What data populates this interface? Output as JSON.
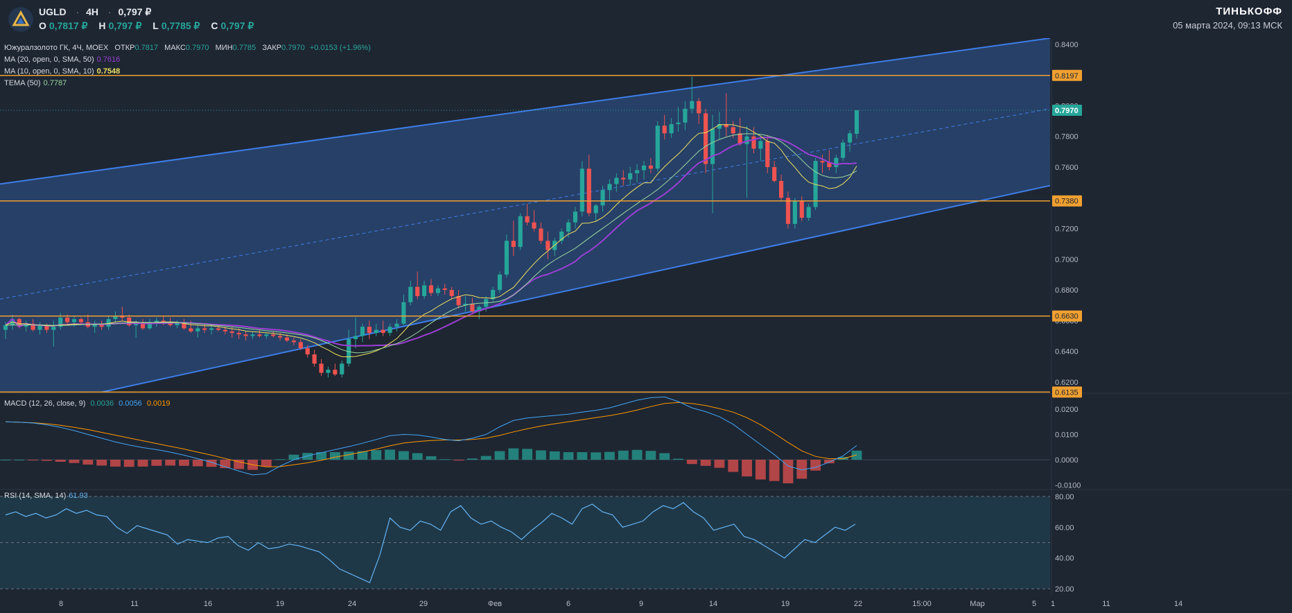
{
  "header": {
    "ticker": "UGLD",
    "timeframe": "4H",
    "price": "0,797 ₽",
    "open_label": "O",
    "open": "0,7817 ₽",
    "high_label": "H",
    "high": "0,797 ₽",
    "low_label": "L",
    "low": "0,7785 ₽",
    "close_label": "C",
    "close": "0,797 ₽",
    "brand": "ТИНЬКОФФ",
    "datetime": "05 марта 2024, 09:13 МСК"
  },
  "legend": {
    "instrument": "Южуралзолото ГК, 4Ч, MOEX",
    "open_label": "ОТКР",
    "open": "0.7817",
    "high_label": "МАКС",
    "high": "0.7970",
    "low_label": "МИН",
    "low": "0.7785",
    "close_label": "ЗАКР",
    "close": "0.7970",
    "change": "+0.0153 (+1.96%)",
    "ma20_label": "MA (20, open, 0, SMA, 50)",
    "ma20_value": "0.7616",
    "ma10_label": "MA (10, open, 0, SMA, 10)",
    "ma10_value": "0.7548",
    "tema_label": "TEMA (50)",
    "tema_value": "0.7787",
    "macd_label": "MACD (12, 26, close, 9)",
    "macd_hist": "0.0036",
    "macd_line": "0.0056",
    "macd_signal": "0.0019",
    "rsi_label": "RSI (14, SMA, 14)",
    "rsi_value": "61.93"
  },
  "colors": {
    "background": "#1e2632",
    "up": "#26a69a",
    "down": "#ef5350",
    "channel_line": "#3d7ee8",
    "channel_fill": "#2b4a7a",
    "level_line": "#f0a030",
    "ma20": "#9c3fd4",
    "ma10": "#f0e060",
    "tema": "#9bd8a0",
    "macd_line": "#42a5f5",
    "macd_signal": "#ff9800",
    "rsi_line": "#64b5f6",
    "rsi_fill": "#1f3d4c"
  },
  "chart_data": [
    {
      "type": "candlestick",
      "title": "Южуралзолото ГК, 4Ч, MOEX",
      "x_ticks": [
        "8",
        "11",
        "16",
        "19",
        "24",
        "29",
        "Фев",
        "6",
        "9",
        "14",
        "19",
        "22",
        "15:00",
        "Мар",
        "5",
        "11",
        "14",
        "1"
      ],
      "y_ticks": [
        "0.6200",
        "0.6400",
        "0.6600",
        "0.6800",
        "0.7000",
        "0.7200",
        "0.7600",
        "0.7800",
        "0.8000",
        "0.8400"
      ],
      "ylim": [
        0.6132,
        0.844
      ],
      "levels": [
        "0.8197",
        "0.7380",
        "0.6630",
        "0.6135"
      ],
      "last_price": "0.7970",
      "channel": {
        "upper": [
          [
            0,
            0.749
          ],
          [
            100,
            0.844
          ]
        ],
        "lower": [
          [
            0,
            0.599
          ],
          [
            100,
            0.748
          ]
        ],
        "mid": [
          [
            0,
            0.674
          ],
          [
            100,
            0.798
          ]
        ]
      },
      "candles": [
        [
          0.654,
          0.659,
          0.648,
          0.657
        ],
        [
          0.657,
          0.664,
          0.654,
          0.661
        ],
        [
          0.661,
          0.662,
          0.655,
          0.656
        ],
        [
          0.656,
          0.66,
          0.653,
          0.658
        ],
        [
          0.658,
          0.661,
          0.653,
          0.654
        ],
        [
          0.654,
          0.659,
          0.651,
          0.657
        ],
        [
          0.657,
          0.658,
          0.652,
          0.654
        ],
        [
          0.654,
          0.66,
          0.643,
          0.656
        ],
        [
          0.656,
          0.665,
          0.654,
          0.662
        ],
        [
          0.662,
          0.664,
          0.657,
          0.659
        ],
        [
          0.659,
          0.663,
          0.656,
          0.661
        ],
        [
          0.661,
          0.662,
          0.657,
          0.659
        ],
        [
          0.659,
          0.664,
          0.655,
          0.656
        ],
        [
          0.656,
          0.66,
          0.652,
          0.658
        ],
        [
          0.658,
          0.66,
          0.654,
          0.656
        ],
        [
          0.656,
          0.663,
          0.654,
          0.661
        ],
        [
          0.661,
          0.666,
          0.659,
          0.663
        ],
        [
          0.663,
          0.669,
          0.66,
          0.662
        ],
        [
          0.662,
          0.664,
          0.656,
          0.657
        ],
        [
          0.657,
          0.66,
          0.649,
          0.659
        ],
        [
          0.659,
          0.661,
          0.654,
          0.655
        ],
        [
          0.655,
          0.661,
          0.654,
          0.659
        ],
        [
          0.659,
          0.662,
          0.656,
          0.66
        ],
        [
          0.66,
          0.663,
          0.657,
          0.659
        ],
        [
          0.659,
          0.662,
          0.656,
          0.657
        ],
        [
          0.657,
          0.66,
          0.655,
          0.659
        ],
        [
          0.659,
          0.661,
          0.654,
          0.655
        ],
        [
          0.655,
          0.66,
          0.652,
          0.653
        ],
        [
          0.653,
          0.657,
          0.649,
          0.655
        ],
        [
          0.655,
          0.658,
          0.652,
          0.654
        ],
        [
          0.654,
          0.657,
          0.651,
          0.655
        ],
        [
          0.655,
          0.657,
          0.653,
          0.654
        ],
        [
          0.654,
          0.656,
          0.651,
          0.653
        ],
        [
          0.653,
          0.656,
          0.649,
          0.652
        ],
        [
          0.652,
          0.655,
          0.648,
          0.651
        ],
        [
          0.651,
          0.653,
          0.647,
          0.65
        ],
        [
          0.65,
          0.653,
          0.648,
          0.651
        ],
        [
          0.651,
          0.654,
          0.649,
          0.65
        ],
        [
          0.65,
          0.652,
          0.648,
          0.651
        ],
        [
          0.651,
          0.653,
          0.649,
          0.65
        ],
        [
          0.65,
          0.652,
          0.647,
          0.649
        ],
        [
          0.649,
          0.651,
          0.646,
          0.647
        ],
        [
          0.647,
          0.649,
          0.644,
          0.646
        ],
        [
          0.646,
          0.648,
          0.641,
          0.642
        ],
        [
          0.642,
          0.644,
          0.636,
          0.638
        ],
        [
          0.638,
          0.641,
          0.63,
          0.632
        ],
        [
          0.632,
          0.635,
          0.624,
          0.626
        ],
        [
          0.626,
          0.63,
          0.623,
          0.628
        ],
        [
          0.628,
          0.632,
          0.624,
          0.625
        ],
        [
          0.625,
          0.634,
          0.623,
          0.632
        ],
        [
          0.632,
          0.654,
          0.63,
          0.648
        ],
        [
          0.648,
          0.662,
          0.642,
          0.65
        ],
        [
          0.65,
          0.658,
          0.646,
          0.656
        ],
        [
          0.656,
          0.66,
          0.648,
          0.652
        ],
        [
          0.652,
          0.658,
          0.65,
          0.654
        ],
        [
          0.654,
          0.66,
          0.65,
          0.652
        ],
        [
          0.652,
          0.658,
          0.65,
          0.656
        ],
        [
          0.656,
          0.661,
          0.653,
          0.658
        ],
        [
          0.658,
          0.677,
          0.657,
          0.672
        ],
        [
          0.672,
          0.686,
          0.67,
          0.682
        ],
        [
          0.682,
          0.692,
          0.674,
          0.676
        ],
        [
          0.676,
          0.686,
          0.674,
          0.683
        ],
        [
          0.683,
          0.687,
          0.676,
          0.678
        ],
        [
          0.678,
          0.683,
          0.676,
          0.681
        ],
        [
          0.681,
          0.684,
          0.677,
          0.68
        ],
        [
          0.68,
          0.682,
          0.674,
          0.676
        ],
        [
          0.676,
          0.68,
          0.668,
          0.67
        ],
        [
          0.67,
          0.676,
          0.666,
          0.671
        ],
        [
          0.671,
          0.675,
          0.664,
          0.666
        ],
        [
          0.666,
          0.67,
          0.661,
          0.669
        ],
        [
          0.669,
          0.676,
          0.666,
          0.674
        ],
        [
          0.674,
          0.682,
          0.672,
          0.68
        ],
        [
          0.68,
          0.692,
          0.678,
          0.69
        ],
        [
          0.69,
          0.716,
          0.688,
          0.712
        ],
        [
          0.712,
          0.725,
          0.702,
          0.708
        ],
        [
          0.708,
          0.73,
          0.706,
          0.728
        ],
        [
          0.728,
          0.736,
          0.722,
          0.724
        ],
        [
          0.724,
          0.732,
          0.718,
          0.72
        ],
        [
          0.72,
          0.724,
          0.71,
          0.712
        ],
        [
          0.712,
          0.718,
          0.7,
          0.706
        ],
        [
          0.706,
          0.714,
          0.702,
          0.712
        ],
        [
          0.712,
          0.72,
          0.71,
          0.718
        ],
        [
          0.718,
          0.726,
          0.714,
          0.724
        ],
        [
          0.724,
          0.734,
          0.72,
          0.731
        ],
        [
          0.731,
          0.764,
          0.728,
          0.759
        ],
        [
          0.759,
          0.768,
          0.728,
          0.73
        ],
        [
          0.73,
          0.736,
          0.725,
          0.735
        ],
        [
          0.735,
          0.748,
          0.731,
          0.745
        ],
        [
          0.745,
          0.752,
          0.738,
          0.749
        ],
        [
          0.749,
          0.756,
          0.744,
          0.753
        ],
        [
          0.753,
          0.758,
          0.748,
          0.752
        ],
        [
          0.752,
          0.76,
          0.748,
          0.756
        ],
        [
          0.756,
          0.762,
          0.75,
          0.758
        ],
        [
          0.758,
          0.764,
          0.752,
          0.761
        ],
        [
          0.761,
          0.766,
          0.756,
          0.759
        ],
        [
          0.759,
          0.79,
          0.757,
          0.787
        ],
        [
          0.787,
          0.794,
          0.778,
          0.782
        ],
        [
          0.782,
          0.792,
          0.779,
          0.788
        ],
        [
          0.788,
          0.799,
          0.783,
          0.789
        ],
        [
          0.789,
          0.803,
          0.784,
          0.798
        ],
        [
          0.798,
          0.819,
          0.795,
          0.803
        ],
        [
          0.803,
          0.805,
          0.788,
          0.795
        ],
        [
          0.795,
          0.798,
          0.756,
          0.762
        ],
        [
          0.762,
          0.794,
          0.73,
          0.785
        ],
        [
          0.785,
          0.796,
          0.778,
          0.788
        ],
        [
          0.788,
          0.808,
          0.78,
          0.786
        ],
        [
          0.786,
          0.79,
          0.779,
          0.782
        ],
        [
          0.782,
          0.792,
          0.774,
          0.775
        ],
        [
          0.775,
          0.787,
          0.74,
          0.78
        ],
        [
          0.78,
          0.786,
          0.769,
          0.772
        ],
        [
          0.772,
          0.779,
          0.764,
          0.777
        ],
        [
          0.777,
          0.781,
          0.756,
          0.76
        ],
        [
          0.76,
          0.764,
          0.75,
          0.751
        ],
        [
          0.751,
          0.755,
          0.738,
          0.74
        ],
        [
          0.74,
          0.744,
          0.72,
          0.723
        ],
        [
          0.723,
          0.74,
          0.72,
          0.738
        ],
        [
          0.738,
          0.741,
          0.725,
          0.727
        ],
        [
          0.727,
          0.736,
          0.725,
          0.734
        ],
        [
          0.734,
          0.766,
          0.732,
          0.764
        ],
        [
          0.764,
          0.768,
          0.756,
          0.763
        ],
        [
          0.763,
          0.771,
          0.758,
          0.76
        ],
        [
          0.76,
          0.768,
          0.756,
          0.766
        ],
        [
          0.766,
          0.778,
          0.764,
          0.776
        ],
        [
          0.776,
          0.784,
          0.77,
          0.782
        ],
        [
          0.7817,
          0.797,
          0.7785,
          0.797
        ]
      ]
    },
    {
      "type": "line",
      "title": "MACD (12, 26, close, 9)",
      "y_ticks": [
        "0.0200",
        "0.0100",
        "0.0000",
        "-0.0100"
      ],
      "ylim": [
        -0.0115,
        0.026
      ],
      "macd": [
        0.015,
        0.0148,
        0.0145,
        0.0138,
        0.0128,
        0.0115,
        0.01,
        0.0085,
        0.007,
        0.0058,
        0.0048,
        0.004,
        0.003,
        0.0018,
        0.0004,
        -0.001,
        -0.0028,
        -0.0045,
        -0.006,
        -0.0055,
        -0.0025,
        0.0,
        0.0015,
        0.0028,
        0.004,
        0.0052,
        0.0065,
        0.008,
        0.0095,
        0.01,
        0.0098,
        0.009,
        0.008,
        0.0075,
        0.0085,
        0.01,
        0.013,
        0.0155,
        0.0165,
        0.017,
        0.0175,
        0.018,
        0.0188,
        0.0195,
        0.0205,
        0.022,
        0.0235,
        0.0245,
        0.0248,
        0.023,
        0.0205,
        0.019,
        0.017,
        0.014,
        0.01,
        0.006,
        0.002,
        -0.0025,
        -0.004,
        -0.003,
        -0.001,
        0.0015,
        0.0056
      ],
      "signal": [
        0.015,
        0.0148,
        0.0146,
        0.0142,
        0.0136,
        0.0128,
        0.0119,
        0.0108,
        0.0097,
        0.0086,
        0.0075,
        0.0064,
        0.0053,
        0.0042,
        0.003,
        0.0018,
        0.0005,
        -0.0008,
        -0.002,
        -0.0028,
        -0.0027,
        -0.002,
        -0.0012,
        -0.0002,
        0.001,
        0.002,
        0.0031,
        0.0042,
        0.0055,
        0.0066,
        0.0072,
        0.0076,
        0.0078,
        0.0078,
        0.008,
        0.0085,
        0.0096,
        0.011,
        0.0122,
        0.0133,
        0.0142,
        0.015,
        0.0158,
        0.0166,
        0.0174,
        0.0184,
        0.0196,
        0.021,
        0.0222,
        0.0226,
        0.0222,
        0.0214,
        0.0202,
        0.0188,
        0.0166,
        0.0138,
        0.0104,
        0.0068,
        0.0035,
        0.0013,
        0.0004,
        0.0004,
        0.0019
      ],
      "histogram": [
        0.0,
        0.0,
        -0.0001,
        -0.0004,
        -0.0008,
        -0.0013,
        -0.0019,
        -0.0023,
        -0.0027,
        -0.0028,
        -0.0027,
        -0.0024,
        -0.0023,
        -0.0024,
        -0.0026,
        -0.0028,
        -0.0033,
        -0.0037,
        -0.004,
        -0.0027,
        0.0002,
        0.002,
        0.0027,
        0.003,
        0.003,
        0.0032,
        0.0034,
        0.0038,
        0.004,
        0.0034,
        0.0026,
        0.0014,
        0.0002,
        -0.0003,
        0.0005,
        0.0015,
        0.0034,
        0.0045,
        0.0043,
        0.0037,
        0.0033,
        0.003,
        0.003,
        0.0029,
        0.0031,
        0.0036,
        0.0039,
        0.0035,
        0.0026,
        0.0004,
        -0.0017,
        -0.0024,
        -0.0032,
        -0.0048,
        -0.0066,
        -0.0078,
        -0.0084,
        -0.0093,
        -0.0075,
        -0.0043,
        -0.0014,
        0.0011,
        0.0036
      ]
    },
    {
      "type": "line",
      "title": "RSI (14, SMA, 14)",
      "y_ticks": [
        "80.00",
        "60.00",
        "40.00",
        "20.00"
      ],
      "ylim": [
        16,
        84
      ],
      "bands": [
        80,
        50,
        20
      ],
      "values": [
        68,
        70,
        67,
        69,
        66,
        68,
        72,
        69,
        71,
        68,
        67,
        60,
        56,
        61,
        59,
        57,
        55,
        49,
        52,
        51,
        50,
        53,
        54,
        48,
        45,
        50,
        46,
        47,
        49,
        48,
        46,
        44,
        39,
        33,
        30,
        27,
        24,
        42,
        66,
        60,
        58,
        64,
        62,
        58,
        70,
        74,
        66,
        62,
        64,
        60,
        57,
        52,
        58,
        63,
        69,
        66,
        62,
        72,
        75,
        70,
        68,
        60,
        62,
        64,
        70,
        74,
        72,
        76,
        70,
        66,
        58,
        60,
        62,
        54,
        52,
        48,
        44,
        40,
        46,
        52,
        50,
        55,
        60,
        58,
        62
      ],
      "last": 61.93
    }
  ]
}
